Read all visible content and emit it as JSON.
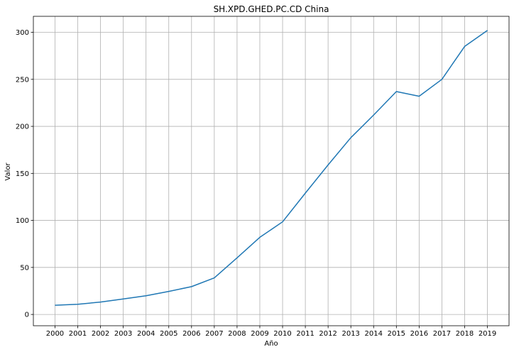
{
  "chart_data": {
    "type": "line",
    "title": "SH.XPD.GHED.PC.CD China",
    "xlabel": "Año",
    "ylabel": "Valor",
    "x": [
      "2000",
      "2001",
      "2002",
      "2003",
      "2004",
      "2005",
      "2006",
      "2007",
      "2008",
      "2009",
      "2010",
      "2011",
      "2012",
      "2013",
      "2014",
      "2015",
      "2016",
      "2017",
      "2018",
      "2019"
    ],
    "series": [
      {
        "name": "",
        "color": "#1f77b4",
        "values": [
          9.8,
          10.8,
          13.2,
          16.5,
          19.9,
          24.5,
          29.6,
          38.9,
          60.2,
          82.0,
          98.5,
          129.0,
          159.0,
          188.0,
          212.0,
          237.0,
          232.0,
          250.0,
          285.0,
          302.0
        ]
      }
    ],
    "ylim": [
      -12,
      317
    ],
    "yticks": [
      0,
      50,
      100,
      150,
      200,
      250,
      300
    ],
    "grid": true
  }
}
